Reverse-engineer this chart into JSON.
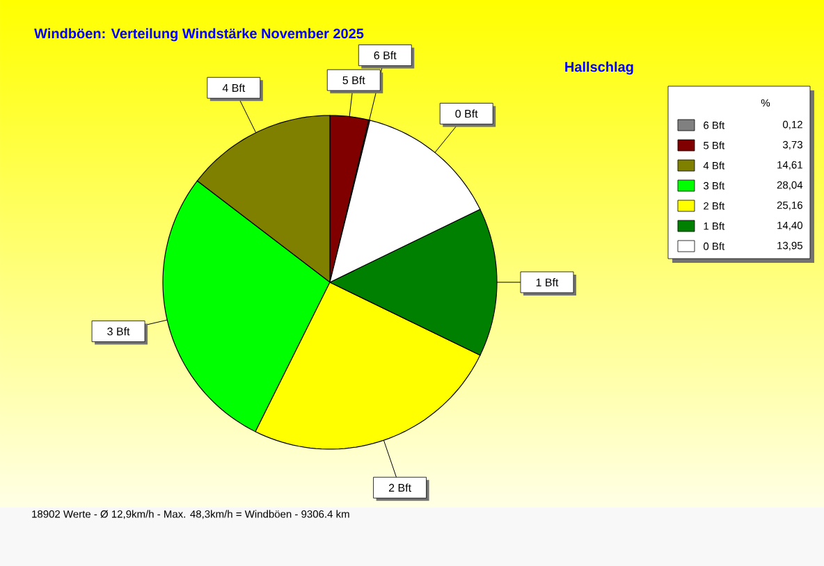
{
  "chart_data": {
    "type": "pie",
    "title": "Windböen: Verteilung Windstärke  November 2025",
    "subtitle": "Hallschlag",
    "categories": [
      "6 Bft",
      "5 Bft",
      "4 Bft",
      "3 Bft",
      "2 Bft",
      "1 Bft",
      "0 Bft"
    ],
    "values": [
      0.12,
      3.73,
      14.61,
      28.04,
      25.16,
      14.4,
      13.95
    ],
    "value_labels": [
      "0,12",
      "3,73",
      "14,61",
      "28,04",
      "25,16",
      "14,40",
      "13,95"
    ],
    "colors": [
      "#808080",
      "#800000",
      "#808000",
      "#00ff00",
      "#ffff00",
      "#008000",
      "#ffffff"
    ],
    "legend_title": "%",
    "legend": "top right",
    "annotations": [
      "18902 Werte   -   Ø 12,9km/h  -  Max. 48,3km/h = Windböen   -   9306.4 km"
    ]
  }
}
